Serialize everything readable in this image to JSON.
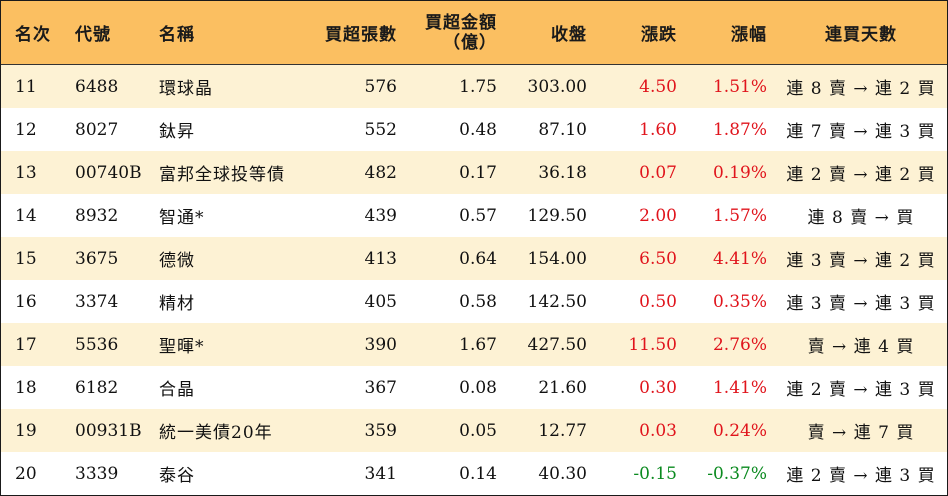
{
  "columns": {
    "rank": "名次",
    "code": "代號",
    "name": "名稱",
    "lots": "買超張數",
    "amount_line1": "買超金額",
    "amount_line2": "（億）",
    "close": "收盤",
    "change": "漲跌",
    "pct": "漲幅",
    "days": "連買天數"
  },
  "colors": {
    "header_bg": "#fbbf61",
    "stripe": "#fdf2d4",
    "up": "#e0141c",
    "down": "#0a8a1f"
  },
  "rows": [
    {
      "rank": "11",
      "code": "6488",
      "name": "環球晶",
      "lots": "576",
      "amount": "1.75",
      "close": "303.00",
      "change": "4.50",
      "pct": "1.51%",
      "days": "連 8 賣 → 連 2 買",
      "dir": "up"
    },
    {
      "rank": "12",
      "code": "8027",
      "name": "鈦昇",
      "lots": "552",
      "amount": "0.48",
      "close": "87.10",
      "change": "1.60",
      "pct": "1.87%",
      "days": "連 7 賣 → 連 3 買",
      "dir": "up"
    },
    {
      "rank": "13",
      "code": "00740B",
      "name": "富邦全球投等債",
      "lots": "482",
      "amount": "0.17",
      "close": "36.18",
      "change": "0.07",
      "pct": "0.19%",
      "days": "連 2 賣 → 連 2 買",
      "dir": "up"
    },
    {
      "rank": "14",
      "code": "8932",
      "name": "智通*",
      "lots": "439",
      "amount": "0.57",
      "close": "129.50",
      "change": "2.00",
      "pct": "1.57%",
      "days": "連 8 賣 → 買",
      "dir": "up"
    },
    {
      "rank": "15",
      "code": "3675",
      "name": "德微",
      "lots": "413",
      "amount": "0.64",
      "close": "154.00",
      "change": "6.50",
      "pct": "4.41%",
      "days": "連 3 賣 → 連 2 買",
      "dir": "up"
    },
    {
      "rank": "16",
      "code": "3374",
      "name": "精材",
      "lots": "405",
      "amount": "0.58",
      "close": "142.50",
      "change": "0.50",
      "pct": "0.35%",
      "days": "連 3 賣 → 連 3 買",
      "dir": "up"
    },
    {
      "rank": "17",
      "code": "5536",
      "name": "聖暉*",
      "lots": "390",
      "amount": "1.67",
      "close": "427.50",
      "change": "11.50",
      "pct": "2.76%",
      "days": "賣 → 連 4 買",
      "dir": "up"
    },
    {
      "rank": "18",
      "code": "6182",
      "name": "合晶",
      "lots": "367",
      "amount": "0.08",
      "close": "21.60",
      "change": "0.30",
      "pct": "1.41%",
      "days": "連 2 賣 → 連 3 買",
      "dir": "up"
    },
    {
      "rank": "19",
      "code": "00931B",
      "name": "統一美債20年",
      "lots": "359",
      "amount": "0.05",
      "close": "12.77",
      "change": "0.03",
      "pct": "0.24%",
      "days": "賣 → 連 7 買",
      "dir": "up"
    },
    {
      "rank": "20",
      "code": "3339",
      "name": "泰谷",
      "lots": "341",
      "amount": "0.14",
      "close": "40.30",
      "change": "-0.15",
      "pct": "-0.37%",
      "days": "連 2 賣 → 連 3 買",
      "dir": "down"
    }
  ]
}
